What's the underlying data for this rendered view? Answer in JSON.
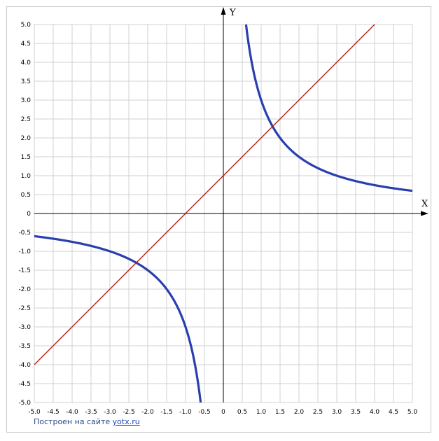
{
  "chart_data": {
    "type": "line",
    "title": "",
    "xlabel": "X",
    "ylabel": "Y",
    "xlim": [
      -5,
      5
    ],
    "ylim": [
      -5,
      5
    ],
    "grid": true,
    "major_step": 0.5,
    "x_ticks": [
      "-5.0",
      "-4.5",
      "-4.0",
      "-3.5",
      "-3.0",
      "-2.5",
      "-2.0",
      "-1.5",
      "-1.0",
      "-0.5",
      "0",
      "0.5",
      "1.0",
      "1.5",
      "2.0",
      "2.5",
      "3.0",
      "3.5",
      "4.0",
      "4.5",
      "5.0"
    ],
    "y_ticks": [
      "5.0",
      "4.5",
      "4.0",
      "3.5",
      "3.0",
      "2.5",
      "2.0",
      "1.5",
      "1.0",
      "0.5",
      "0",
      "-0.5",
      "-1.0",
      "-1.5",
      "-2.0",
      "-2.5",
      "-3.0",
      "-3.5",
      "-4.0",
      "-4.5",
      "-5.0"
    ],
    "series": [
      {
        "color": "#2a3fae",
        "x": [
          0.6,
          0.7,
          0.8,
          0.9,
          1.0,
          1.2,
          1.4,
          1.6,
          1.8,
          2.0,
          2.5,
          3.0,
          3.5,
          4.0,
          4.5,
          5.0
        ],
        "y": [
          5.0,
          4.29,
          3.75,
          3.33,
          3.0,
          2.5,
          2.14,
          1.88,
          1.67,
          1.5,
          1.2,
          1.0,
          0.86,
          0.75,
          0.67,
          0.6
        ]
      },
      {
        "color": "#2a3fae",
        "x": [
          -5.0,
          -4.5,
          -4.0,
          -3.5,
          -3.0,
          -2.5,
          -2.0,
          -1.8,
          -1.6,
          -1.4,
          -1.2,
          -1.0,
          -0.9,
          -0.8,
          -0.7,
          -0.6
        ],
        "y": [
          -0.6,
          -0.67,
          -0.75,
          -0.86,
          -1.0,
          -1.2,
          -1.5,
          -1.67,
          -1.88,
          -2.14,
          -2.5,
          -3.0,
          -3.33,
          -3.75,
          -4.29,
          -5.0
        ]
      },
      {
        "color": "#b02418",
        "x": [
          -5.0,
          4.0
        ],
        "y": [
          -4.0,
          5.0
        ]
      }
    ]
  },
  "footer": {
    "text": "Построен на сайте ",
    "link": "yotx.ru"
  },
  "colors": {
    "grid": "#d0d0d0",
    "axis": "#000000",
    "frame": "#c8c8c8",
    "tick_text": "#000000"
  }
}
